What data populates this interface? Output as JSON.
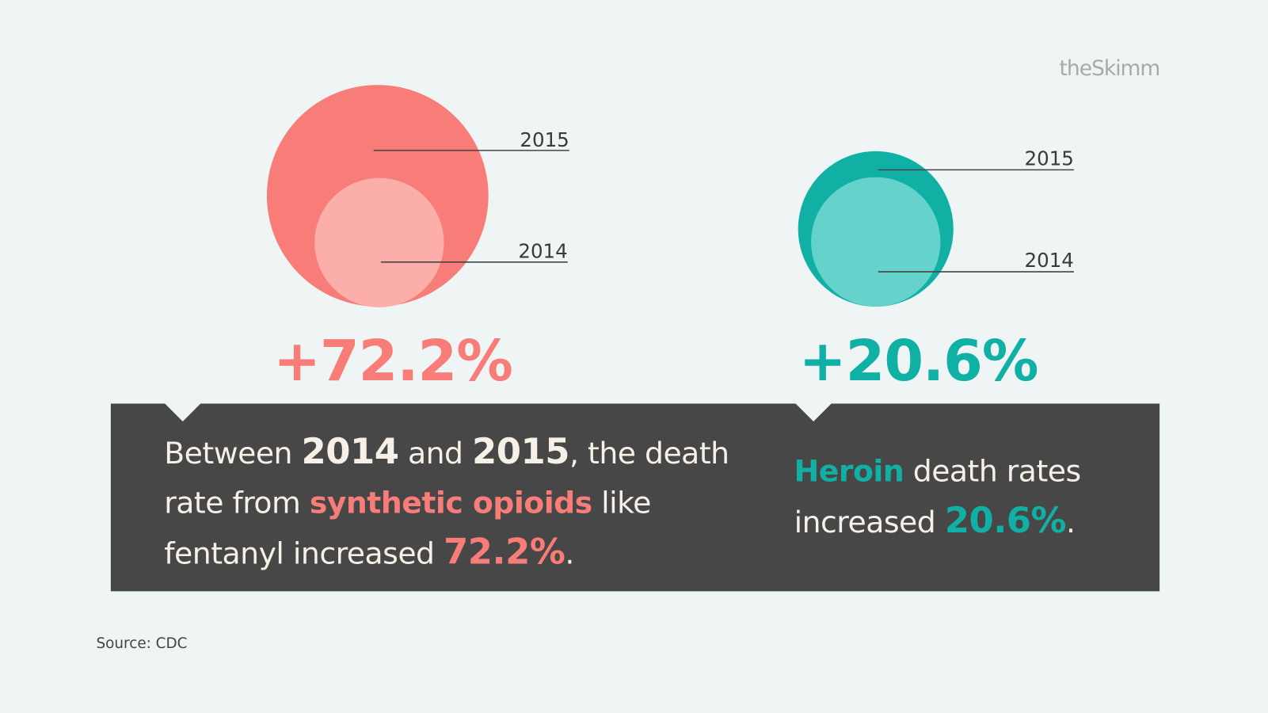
{
  "brand": "theSkimm",
  "panels": [
    {
      "labels": [
        "2015",
        "2014"
      ],
      "change": "+72.2%",
      "text": [
        "Between ",
        "2014",
        " and ",
        "2015",
        ", the death rate from ",
        "synthetic opioids",
        " like fentanyl increased ",
        "72.2%",
        "."
      ]
    },
    {
      "labels": [
        "2015",
        "2014"
      ],
      "change": "+20.6%",
      "text": [
        "Heroin",
        " death rates increased ",
        "20.6%",
        "."
      ]
    }
  ],
  "source": "Source: CDC"
}
